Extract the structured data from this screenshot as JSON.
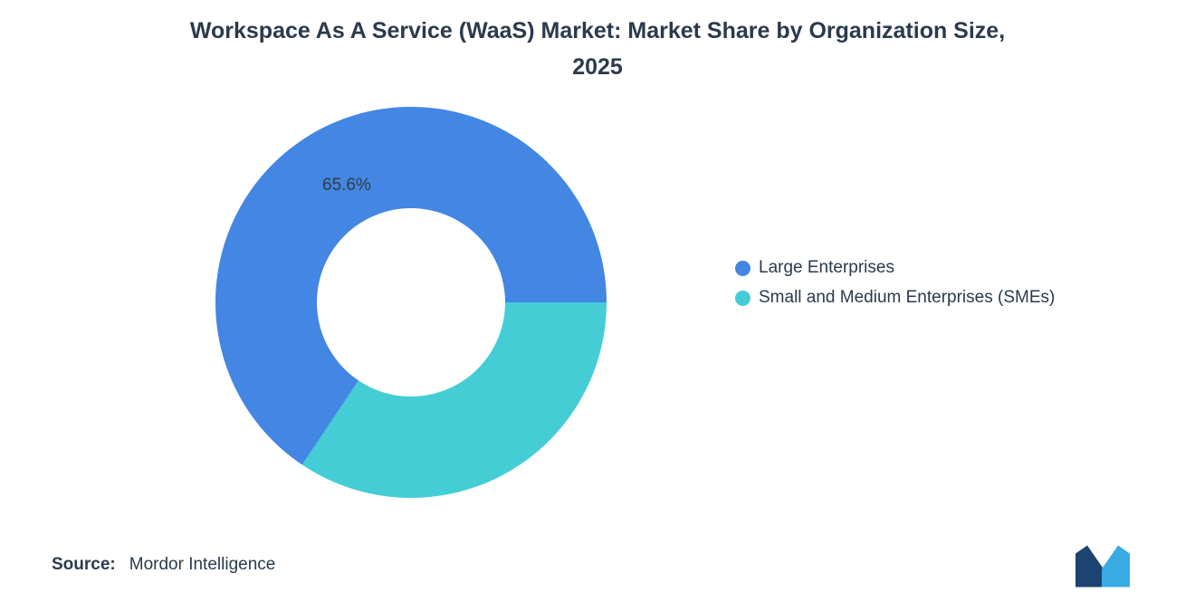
{
  "title": {
    "line1": "Workspace As A Service (WaaS) Market: Market Share by Organization Size,",
    "line2": "2025"
  },
  "chart_data": {
    "type": "pie",
    "donut": true,
    "title": "Workspace As A Service (WaaS) Market: Market Share by Organization Size, 2025",
    "unit": "%",
    "start_angle_deg": 90,
    "legend_position": "right",
    "slices": [
      {
        "label": "Large Enterprises",
        "value": 65.6,
        "data_label": "65.6%",
        "color": "#4386E3"
      },
      {
        "label": "Small and Medium Enterprises (SMEs)",
        "value": 34.4,
        "data_label": "",
        "color": "#44CDD5"
      }
    ]
  },
  "footer": {
    "source_label": "Source:",
    "source_value": "Mordor Intelligence"
  },
  "logo": {
    "name": "mordor-intelligence-logo",
    "dark_color": "#1D4370",
    "light_color": "#38ACE2"
  },
  "colors": {
    "background": "#ffffff",
    "text": "#2b3a4d",
    "data_label_text": "#333b46"
  }
}
